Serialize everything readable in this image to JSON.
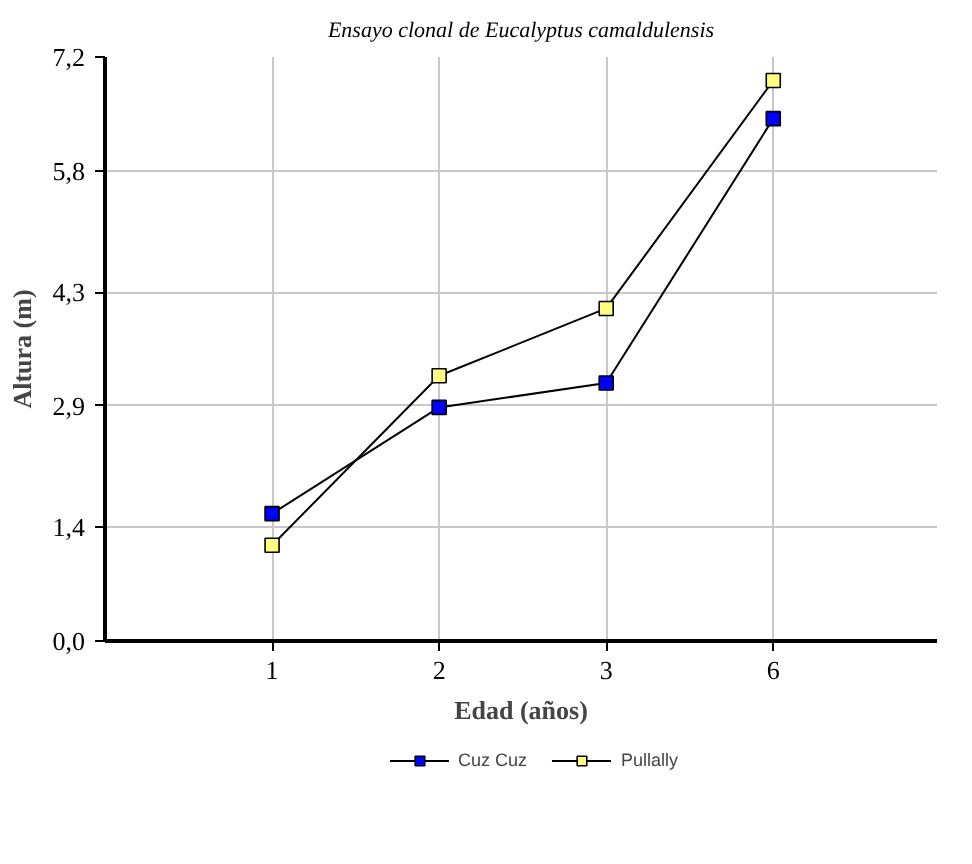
{
  "chart_data": {
    "type": "line",
    "title": "Ensayo clonal de Eucalyptus camaldulensis",
    "xlabel": "Edad (años)",
    "ylabel": "Altura (m)",
    "categories": [
      "1",
      "2",
      "3",
      "6"
    ],
    "series": [
      {
        "name": "Cuz Cuz",
        "color": "#0000ff",
        "values": [
          1.57,
          2.88,
          3.18,
          6.44
        ]
      },
      {
        "name": "Pullally",
        "color": "#ffff80",
        "values": [
          1.18,
          3.27,
          4.1,
          6.91
        ]
      }
    ],
    "ylim": [
      0,
      7.2
    ],
    "yticks": [
      {
        "value": 0,
        "label": "0,0"
      },
      {
        "value": 1.4,
        "label": "1,4"
      },
      {
        "value": 2.9,
        "label": "2,9"
      },
      {
        "value": 4.3,
        "label": "4,3"
      },
      {
        "value": 5.8,
        "label": "5,8"
      },
      {
        "value": 7.2,
        "label": "7,2"
      }
    ],
    "grid": true,
    "legend": "bottom",
    "marker": "square",
    "line_style": "solid"
  }
}
